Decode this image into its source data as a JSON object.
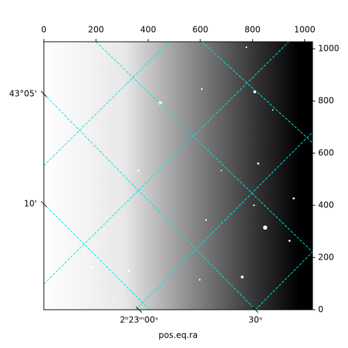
{
  "chart_data": {
    "type": "image",
    "xlabel": "pos.eq.ra",
    "xlim": [
      0,
      1030
    ],
    "ylim": [
      0,
      1027
    ],
    "xticks": [
      0,
      200,
      400,
      600,
      800,
      1000
    ],
    "yticks": [
      0,
      200,
      400,
      600,
      800,
      1000
    ],
    "ra_ticks": [
      {
        "value": 365,
        "label": "2ʰ23ᵐ00ˢ"
      },
      {
        "value": 811,
        "label": "30ˢ"
      }
    ],
    "dec_ticks": [
      {
        "value": 827,
        "label": "43°05'"
      },
      {
        "value": 405,
        "label": "10'"
      }
    ]
  }
}
